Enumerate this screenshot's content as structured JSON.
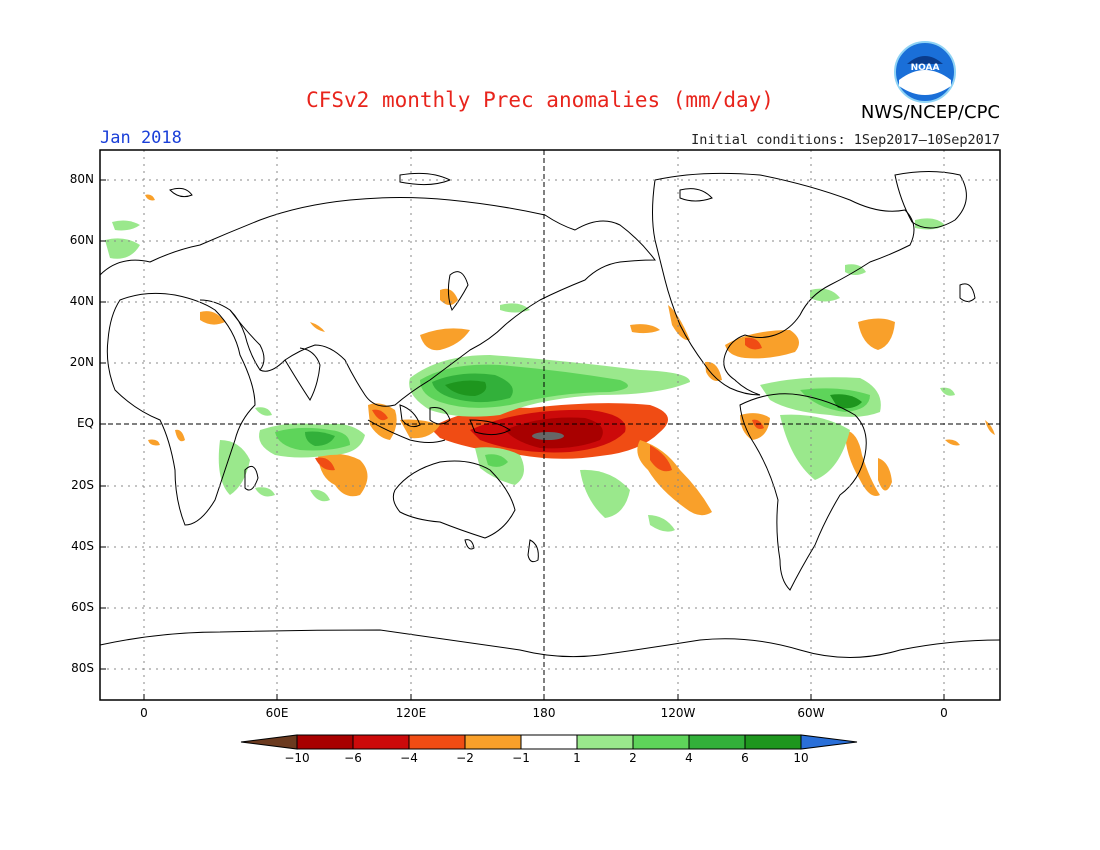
{
  "title": "CFSv2 monthly Prec anomalies (mm/day)",
  "month": "Jan 2018",
  "initial_conditions": "Initial conditions: 1Sep2017–10Sep2017",
  "organization": "NWS/NCEP/CPC",
  "logo_text": "NOAA",
  "lat_labels": [
    "80N",
    "60N",
    "40N",
    "20N",
    "EQ",
    "20S",
    "40S",
    "60S",
    "80S"
  ],
  "lon_labels": [
    "0",
    "60E",
    "120E",
    "180",
    "120W",
    "60W",
    "0"
  ],
  "colorbar": {
    "labels": [
      "−10",
      "−6",
      "−4",
      "−2",
      "−1",
      "1",
      "2",
      "4",
      "6",
      "10"
    ],
    "colors": [
      "#6b3a1f",
      "#a80000",
      "#cc0a0a",
      "#f04c14",
      "#f9a02a",
      "#ffffff",
      "#9ae88c",
      "#5ed45a",
      "#32b03a",
      "#1e961e",
      "#2a6fd8"
    ]
  }
}
